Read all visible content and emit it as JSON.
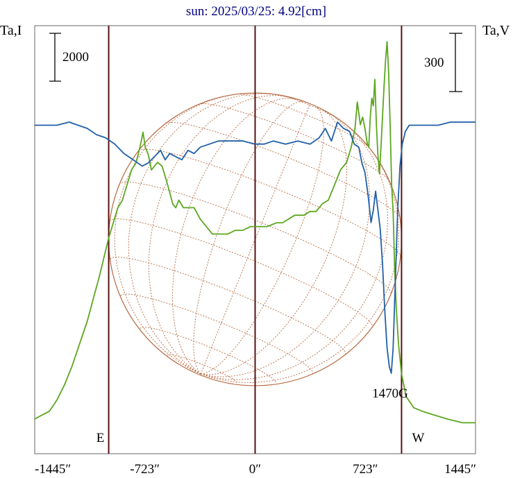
{
  "chart_data": {
    "type": "line",
    "title": "sun: 2025/03/25: 4.92[cm]",
    "left_axis_label": "Ta,I",
    "right_axis_label": "Ta,V",
    "left_scale_bar_label": "2000",
    "right_scale_bar_label": "300",
    "x_ticks": [
      {
        "value": -1445,
        "label": "-1445″"
      },
      {
        "value": -723,
        "label": "-723″"
      },
      {
        "value": 0,
        "label": "0″"
      },
      {
        "value": 723,
        "label": "723″"
      },
      {
        "value": 1445,
        "label": "1445″"
      }
    ],
    "xlim": [
      -1445,
      1445
    ],
    "vertical_markers": [
      {
        "x": -960,
        "label": "E"
      },
      {
        "x": 0,
        "label": ""
      },
      {
        "x": 960,
        "label": "W"
      }
    ],
    "annotation": {
      "x": 885,
      "text": "1470G"
    },
    "disk_radius_arcsec": 960,
    "colors": {
      "stokes_I": "#1f5fa8",
      "stokes_V": "#5aa71e",
      "disk": "#b5683f",
      "markers": "#5a1010",
      "title": "#000080"
    },
    "series": [
      {
        "key": "I",
        "points": [
          [
            -1445,
            0.79
          ],
          [
            -1380,
            0.79
          ],
          [
            -1300,
            0.79
          ],
          [
            -1220,
            0.8
          ],
          [
            -1160,
            0.79
          ],
          [
            -1100,
            0.78
          ],
          [
            -1040,
            0.76
          ],
          [
            -980,
            0.75
          ],
          [
            -920,
            0.73
          ],
          [
            -860,
            0.7
          ],
          [
            -800,
            0.68
          ],
          [
            -740,
            0.66
          ],
          [
            -700,
            0.67
          ],
          [
            -660,
            0.69
          ],
          [
            -620,
            0.71
          ],
          [
            -590,
            0.68
          ],
          [
            -560,
            0.7
          ],
          [
            -520,
            0.69
          ],
          [
            -480,
            0.68
          ],
          [
            -440,
            0.71
          ],
          [
            -400,
            0.7
          ],
          [
            -360,
            0.72
          ],
          [
            -300,
            0.73
          ],
          [
            -240,
            0.74
          ],
          [
            -160,
            0.74
          ],
          [
            -80,
            0.74
          ],
          [
            0,
            0.73
          ],
          [
            60,
            0.73
          ],
          [
            120,
            0.74
          ],
          [
            200,
            0.73
          ],
          [
            280,
            0.74
          ],
          [
            360,
            0.73
          ],
          [
            420,
            0.75
          ],
          [
            460,
            0.78
          ],
          [
            500,
            0.74
          ],
          [
            540,
            0.8
          ],
          [
            580,
            0.78
          ],
          [
            620,
            0.77
          ],
          [
            650,
            0.73
          ],
          [
            680,
            0.72
          ],
          [
            700,
            0.67
          ],
          [
            720,
            0.64
          ],
          [
            740,
            0.57
          ],
          [
            760,
            0.48
          ],
          [
            775,
            0.52
          ],
          [
            790,
            0.58
          ],
          [
            805,
            0.52
          ],
          [
            820,
            0.46
          ],
          [
            835,
            0.35
          ],
          [
            850,
            0.2
          ],
          [
            865,
            0.08
          ],
          [
            880,
            0.02
          ],
          [
            893,
            0.0
          ],
          [
            905,
            0.08
          ],
          [
            920,
            0.3
          ],
          [
            935,
            0.52
          ],
          [
            950,
            0.66
          ],
          [
            965,
            0.73
          ],
          [
            985,
            0.77
          ],
          [
            1010,
            0.79
          ],
          [
            1060,
            0.79
          ],
          [
            1120,
            0.79
          ],
          [
            1200,
            0.79
          ],
          [
            1280,
            0.8
          ],
          [
            1360,
            0.8
          ],
          [
            1445,
            0.8
          ]
        ]
      },
      {
        "key": "V",
        "points": [
          [
            -1445,
            0.0
          ],
          [
            -1400,
            0.01
          ],
          [
            -1350,
            0.02
          ],
          [
            -1300,
            0.05
          ],
          [
            -1250,
            0.09
          ],
          [
            -1200,
            0.14
          ],
          [
            -1150,
            0.2
          ],
          [
            -1100,
            0.26
          ],
          [
            -1060,
            0.32
          ],
          [
            -1020,
            0.38
          ],
          [
            -990,
            0.43
          ],
          [
            -960,
            0.48
          ],
          [
            -930,
            0.52
          ],
          [
            -900,
            0.56
          ],
          [
            -870,
            0.58
          ],
          [
            -840,
            0.62
          ],
          [
            -810,
            0.66
          ],
          [
            -780,
            0.68
          ],
          [
            -755,
            0.72
          ],
          [
            -735,
            0.76
          ],
          [
            -720,
            0.72
          ],
          [
            -700,
            0.7
          ],
          [
            -680,
            0.66
          ],
          [
            -660,
            0.67
          ],
          [
            -640,
            0.68
          ],
          [
            -610,
            0.67
          ],
          [
            -580,
            0.63
          ],
          [
            -560,
            0.6
          ],
          [
            -540,
            0.57
          ],
          [
            -520,
            0.56
          ],
          [
            -500,
            0.58
          ],
          [
            -470,
            0.56
          ],
          [
            -440,
            0.56
          ],
          [
            -400,
            0.56
          ],
          [
            -360,
            0.53
          ],
          [
            -320,
            0.51
          ],
          [
            -280,
            0.49
          ],
          [
            -230,
            0.49
          ],
          [
            -180,
            0.49
          ],
          [
            -130,
            0.5
          ],
          [
            -80,
            0.5
          ],
          [
            -30,
            0.51
          ],
          [
            20,
            0.51
          ],
          [
            80,
            0.51
          ],
          [
            140,
            0.52
          ],
          [
            180,
            0.52
          ],
          [
            220,
            0.53
          ],
          [
            260,
            0.54
          ],
          [
            320,
            0.54
          ],
          [
            360,
            0.55
          ],
          [
            400,
            0.55
          ],
          [
            440,
            0.57
          ],
          [
            480,
            0.58
          ],
          [
            520,
            0.62
          ],
          [
            560,
            0.66
          ],
          [
            600,
            0.68
          ],
          [
            630,
            0.72
          ],
          [
            655,
            0.77
          ],
          [
            670,
            0.84
          ],
          [
            690,
            0.78
          ],
          [
            705,
            0.8
          ],
          [
            720,
            0.77
          ],
          [
            735,
            0.73
          ],
          [
            745,
            0.72
          ],
          [
            755,
            0.8
          ],
          [
            765,
            0.85
          ],
          [
            775,
            0.83
          ],
          [
            785,
            0.9
          ],
          [
            795,
            0.78
          ],
          [
            805,
            0.7
          ],
          [
            815,
            0.65
          ],
          [
            825,
            0.72
          ],
          [
            835,
            0.8
          ],
          [
            845,
            0.88
          ],
          [
            855,
            0.95
          ],
          [
            865,
            1.0
          ],
          [
            875,
            0.92
          ],
          [
            885,
            0.78
          ],
          [
            895,
            0.62
          ],
          [
            905,
            0.55
          ],
          [
            915,
            0.4
          ],
          [
            925,
            0.3
          ],
          [
            940,
            0.2
          ],
          [
            960,
            0.12
          ],
          [
            990,
            0.06
          ],
          [
            1040,
            0.03
          ],
          [
            1100,
            0.02
          ],
          [
            1180,
            0.01
          ],
          [
            1260,
            0.0
          ],
          [
            1360,
            -0.01
          ],
          [
            1445,
            -0.01
          ]
        ]
      }
    ]
  }
}
